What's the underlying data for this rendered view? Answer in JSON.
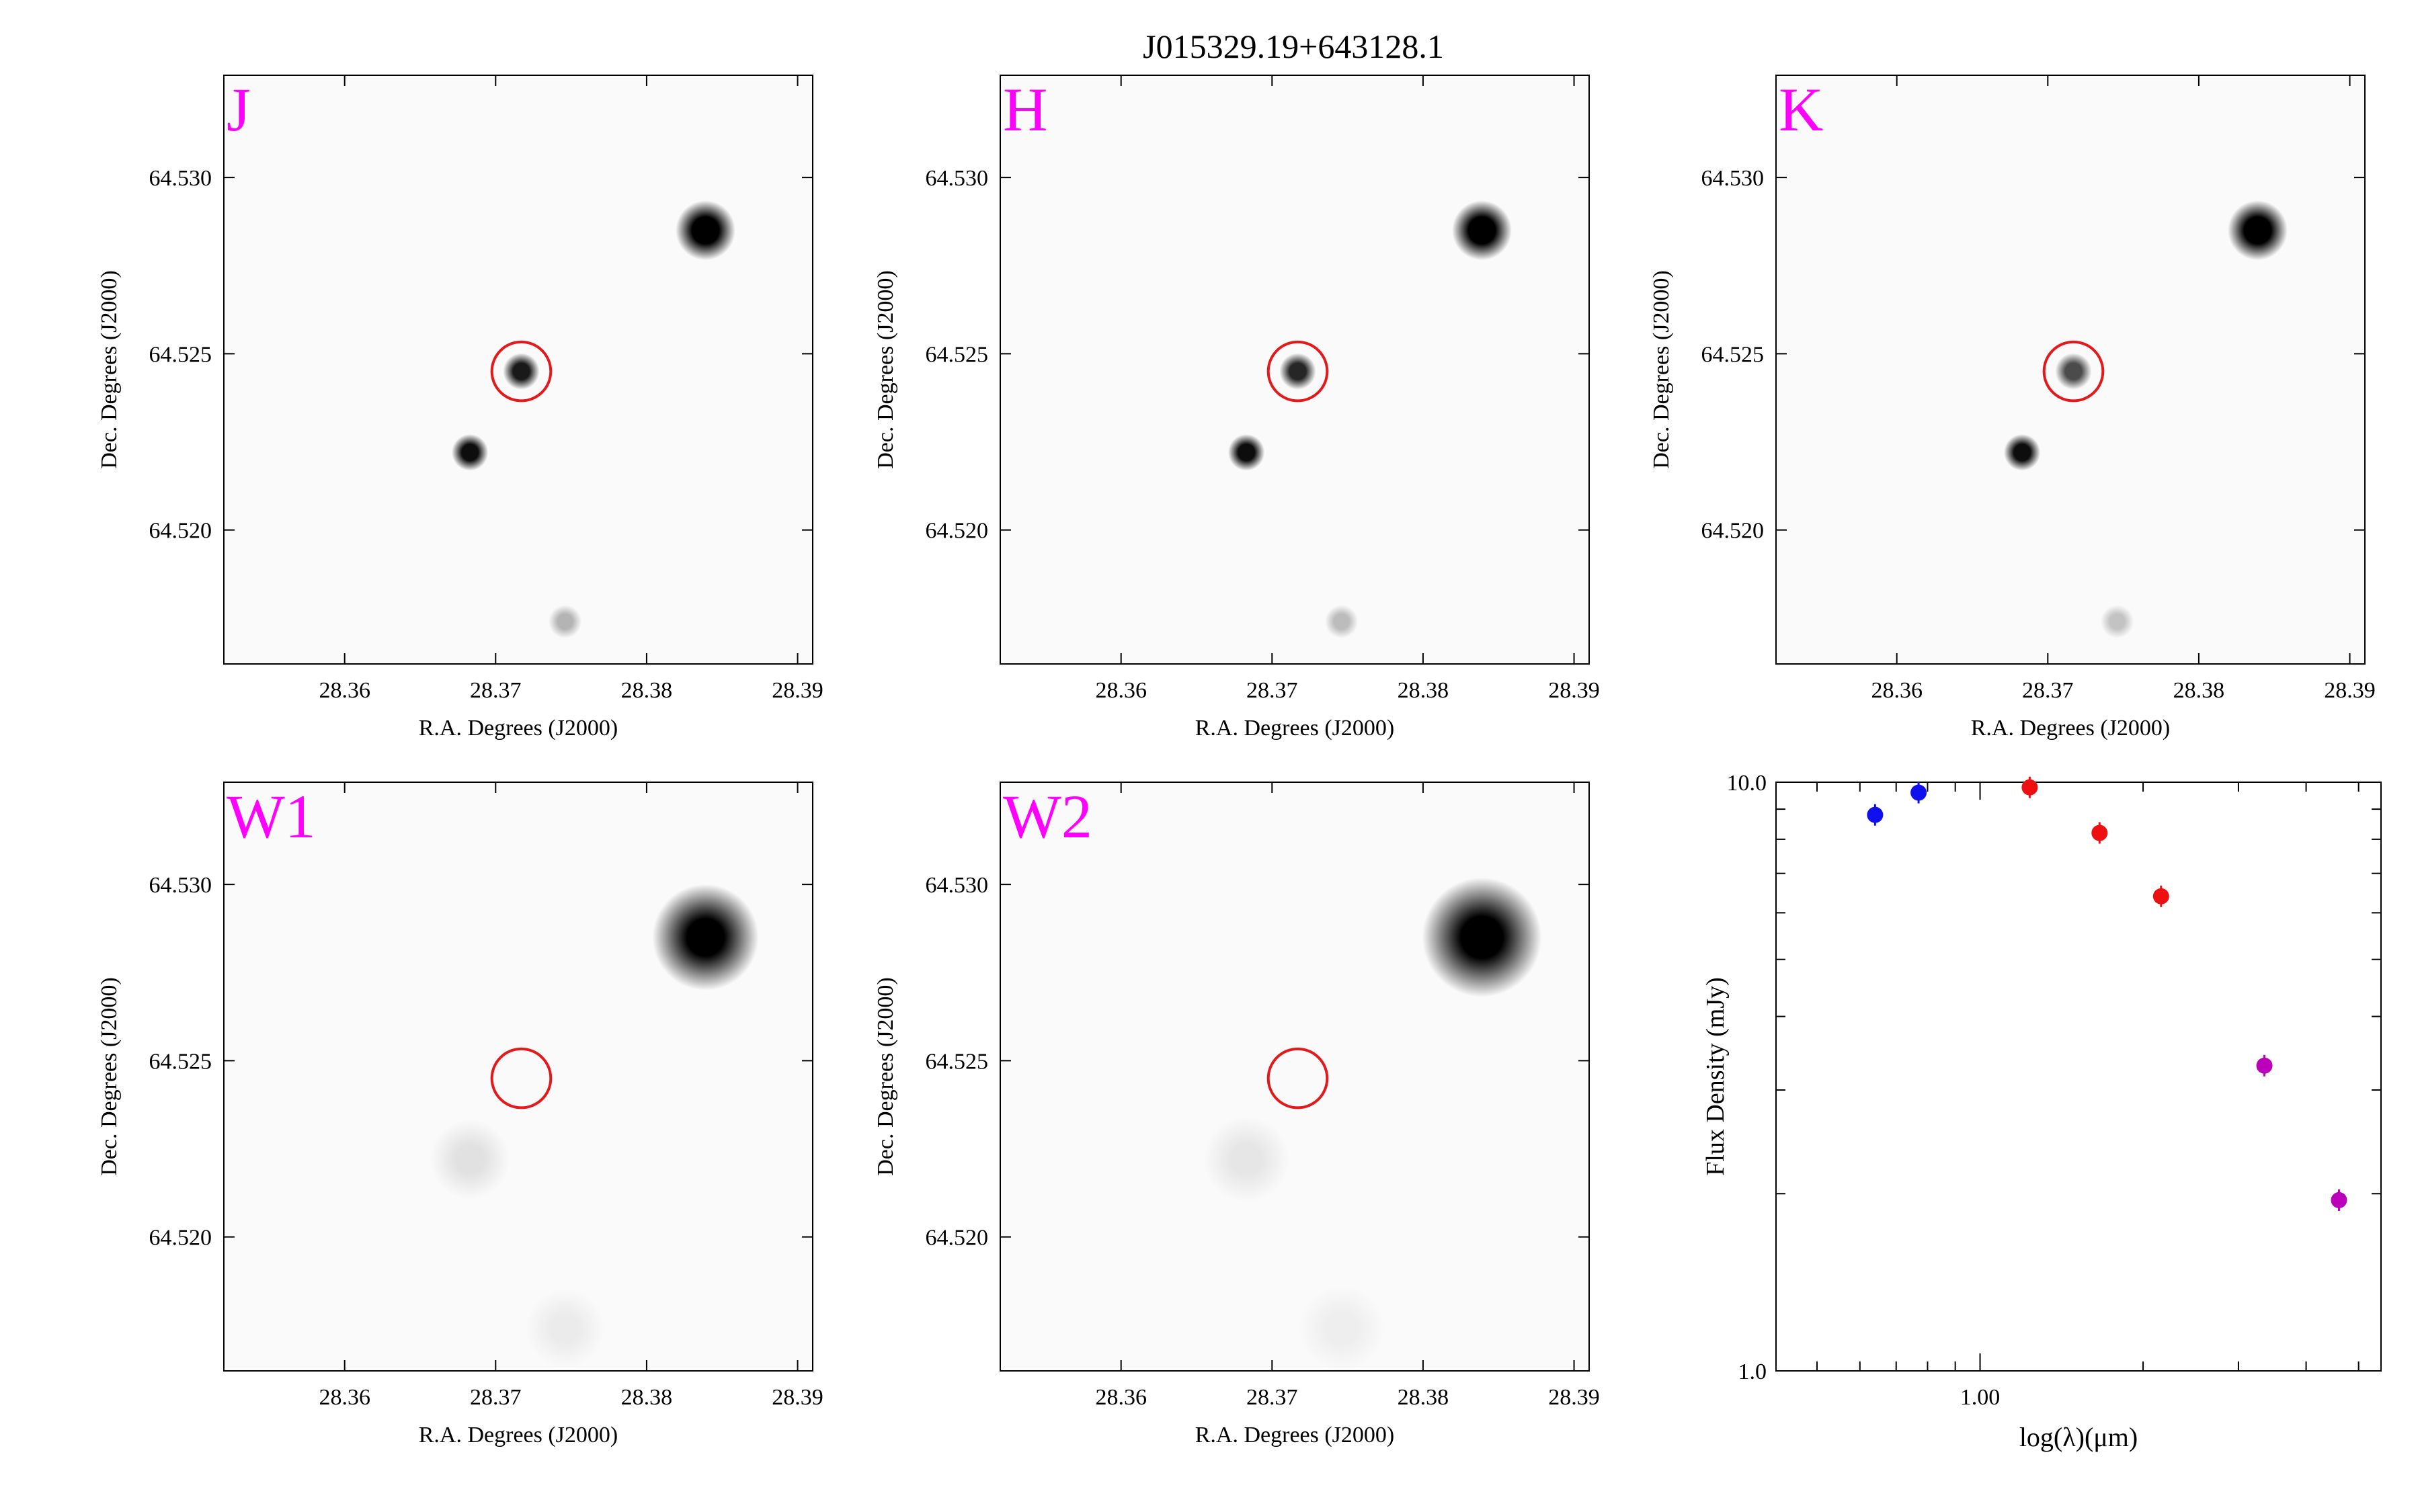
{
  "title": "J015329.19+643128.1",
  "image_panels": [
    {
      "label": "J",
      "xlabel": "R.A. Degrees (J2000)",
      "ylabel": "Dec. Degrees (J2000)",
      "xticks": [
        "28.36",
        "28.37",
        "28.38",
        "28.39"
      ],
      "yticks": [
        "64.530",
        "64.525",
        "64.520"
      ],
      "sources": [
        {
          "ra": 28.3839,
          "dec": 64.5285,
          "strength": 1.0,
          "spread": 0.0009
        },
        {
          "ra": 28.3717,
          "dec": 64.5245,
          "strength": 0.9,
          "spread": 0.00055
        },
        {
          "ra": 28.3683,
          "dec": 64.5222,
          "strength": 0.95,
          "spread": 0.00055
        },
        {
          "ra": 28.3746,
          "dec": 64.5174,
          "strength": 0.28,
          "spread": 0.0005
        }
      ]
    },
    {
      "label": "H",
      "xlabel": "R.A. Degrees (J2000)",
      "ylabel": "Dec. Degrees (J2000)",
      "xticks": [
        "28.36",
        "28.37",
        "28.38",
        "28.39"
      ],
      "yticks": [
        "64.530",
        "64.525",
        "64.520"
      ],
      "sources": [
        {
          "ra": 28.3839,
          "dec": 64.5285,
          "strength": 1.0,
          "spread": 0.0009
        },
        {
          "ra": 28.3717,
          "dec": 64.5245,
          "strength": 0.85,
          "spread": 0.00055
        },
        {
          "ra": 28.3683,
          "dec": 64.5222,
          "strength": 0.95,
          "spread": 0.00055
        },
        {
          "ra": 28.3746,
          "dec": 64.5174,
          "strength": 0.25,
          "spread": 0.0005
        }
      ]
    },
    {
      "label": "K",
      "xlabel": "R.A. Degrees (J2000)",
      "ylabel": "Dec. Degrees (J2000)",
      "xticks": [
        "28.36",
        "28.37",
        "28.38",
        "28.39"
      ],
      "yticks": [
        "64.530",
        "64.525",
        "64.520"
      ],
      "sources": [
        {
          "ra": 28.3839,
          "dec": 64.5285,
          "strength": 1.0,
          "spread": 0.0009
        },
        {
          "ra": 28.3717,
          "dec": 64.5245,
          "strength": 0.7,
          "spread": 0.00055
        },
        {
          "ra": 28.3683,
          "dec": 64.5222,
          "strength": 0.95,
          "spread": 0.00055
        },
        {
          "ra": 28.3746,
          "dec": 64.5174,
          "strength": 0.22,
          "spread": 0.0005
        }
      ]
    },
    {
      "label": "W1",
      "xlabel": "R.A. Degrees (J2000)",
      "ylabel": "Dec. Degrees (J2000)",
      "xticks": [
        "28.36",
        "28.37",
        "28.38",
        "28.39"
      ],
      "yticks": [
        "64.530",
        "64.525",
        "64.520"
      ],
      "sources": [
        {
          "ra": 28.3839,
          "dec": 64.5285,
          "strength": 1.0,
          "spread": 0.0016
        },
        {
          "ra": 28.3683,
          "dec": 64.5222,
          "strength": 0.1,
          "spread": 0.0012
        },
        {
          "ra": 28.3746,
          "dec": 64.5174,
          "strength": 0.06,
          "spread": 0.0012
        }
      ]
    },
    {
      "label": "W2",
      "xlabel": "R.A. Degrees (J2000)",
      "ylabel": "Dec. Degrees (J2000)",
      "xticks": [
        "28.36",
        "28.37",
        "28.38",
        "28.39"
      ],
      "yticks": [
        "64.530",
        "64.525",
        "64.520"
      ],
      "sources": [
        {
          "ra": 28.3839,
          "dec": 64.5285,
          "strength": 1.0,
          "spread": 0.0018
        },
        {
          "ra": 28.3683,
          "dec": 64.5222,
          "strength": 0.08,
          "spread": 0.0013
        },
        {
          "ra": 28.3746,
          "dec": 64.5174,
          "strength": 0.05,
          "spread": 0.0013
        }
      ]
    }
  ],
  "image_axes": {
    "xlim": [
      28.352,
      28.391
    ],
    "ylim": [
      64.5162,
      64.5329
    ],
    "target": {
      "ra": 28.3717,
      "dec": 64.5245,
      "radius_ra": 0.00195
    }
  },
  "colors": {
    "panel_label": "#ff00ff",
    "target_circle": "#e4191c",
    "optical": "#1010ee",
    "nir": "#ee1010",
    "mir": "#bb00bb"
  },
  "chart_data": {
    "type": "scatter",
    "title": "",
    "xlabel": "log(λ)(μm)",
    "ylabel": "Flux Density (mJy)",
    "x_scale": "log",
    "y_scale": "log",
    "xlim": [
      0.42,
      5.5
    ],
    "ylim": [
      1.0,
      10.0
    ],
    "xticks": [
      "1.00"
    ],
    "yticks": [
      "10.0",
      "1.0"
    ],
    "series": [
      {
        "color": "#1010ee",
        "x": [
          0.64,
          0.77
        ],
        "y": [
          8.8,
          9.6
        ]
      },
      {
        "color": "#ee1010",
        "x": [
          1.235,
          1.662,
          2.159
        ],
        "y": [
          9.8,
          8.2,
          6.4
        ]
      },
      {
        "color": "#bb00bb",
        "x": [
          3.35,
          4.6
        ],
        "y": [
          3.3,
          1.95
        ]
      }
    ]
  }
}
